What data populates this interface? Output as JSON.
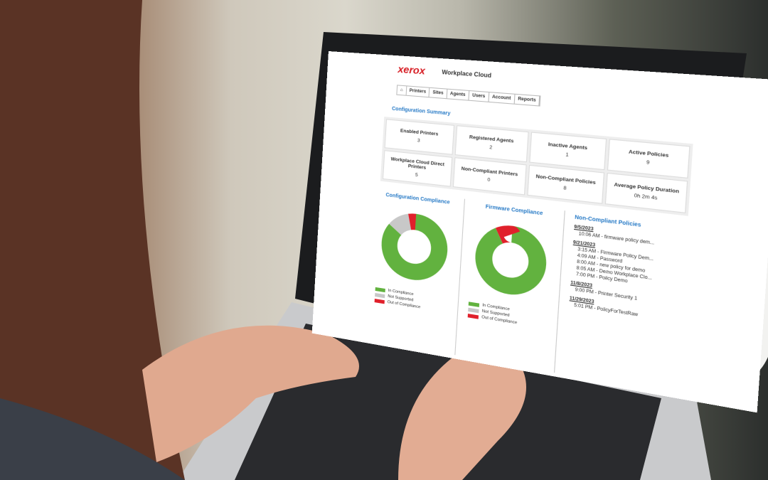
{
  "header": {
    "logo": "xerox",
    "product": "Workplace Cloud"
  },
  "nav": [
    "Printers",
    "Sites",
    "Agents",
    "Users",
    "Account",
    "Reports"
  ],
  "summary": {
    "title": "Configuration Summary",
    "cards": [
      {
        "label": "Enabled Printers",
        "value": 3
      },
      {
        "label": "Registered Agents",
        "value": 2
      },
      {
        "label": "Inactive Agents",
        "value": 1
      },
      {
        "label": "Active Policies",
        "value": 9
      },
      {
        "label": "Workplace Cloud Direct Printers",
        "value": 5
      },
      {
        "label": "Non-Compliant Printers",
        "value": 0
      },
      {
        "label": "Non-Compliant Policies",
        "value": 8
      },
      {
        "label": "Average Policy Duration",
        "value": "0h 2m 4s"
      }
    ]
  },
  "charts": [
    {
      "title": "Configuration Compliance",
      "series": [
        {
          "name": "In Compliance",
          "color": "#62b23f",
          "value": 85
        },
        {
          "name": "Not Supported",
          "color": "#c8c8c8",
          "value": 11
        },
        {
          "name": "Out of Compliance",
          "color": "#e0202b",
          "value": 4
        }
      ]
    },
    {
      "title": "Firmware Compliance",
      "series": [
        {
          "name": "In Compliance",
          "color": "#62b23f",
          "value": 92
        },
        {
          "name": "Not Supported",
          "color": "#c8c8c8",
          "value": 0
        },
        {
          "name": "Out of Compliance",
          "color": "#e0202b",
          "value": 8
        }
      ]
    }
  ],
  "policies": {
    "title": "Non-Compliant Policies",
    "groups": [
      {
        "date": "9/5/2023",
        "items": [
          "10:06 AM - firmware policy dem..."
        ]
      },
      {
        "date": "9/21/2023",
        "items": [
          "3:15 AM - Firmware Policy Dem...",
          "4:09 AM - Password",
          "8:00 AM - new policy for demo",
          "8:05 AM - Demo Workplace Clo...",
          "7:00 PM - Policy Demo"
        ]
      },
      {
        "date": "11/8/2023",
        "items": [
          "9:00 PM - Printer Security 1"
        ]
      },
      {
        "date": "11/29/2023",
        "items": [
          "5:01 PM - PolicyForTestRaw"
        ]
      }
    ]
  }
}
